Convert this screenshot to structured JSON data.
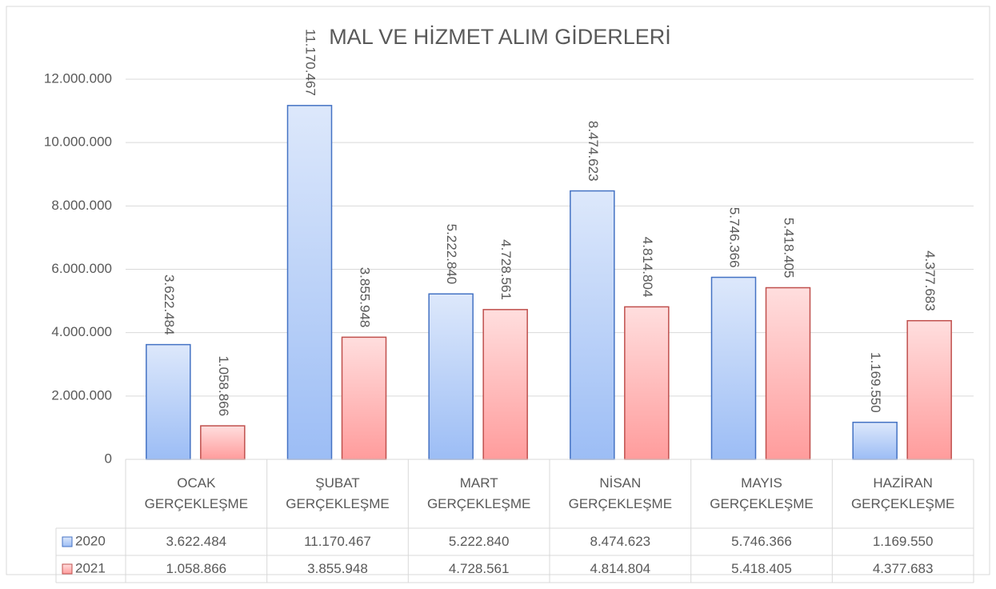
{
  "chart_data": {
    "type": "bar",
    "title": "MAL VE HİZMET ALIM GİDERLERİ",
    "categories": [
      "OCAK GERÇEKLEŞME",
      "ŞUBAT GERÇEKLEŞME",
      "MART GERÇEKLEŞME",
      "NİSAN GERÇEKLEŞME",
      "MAYIS GERÇEKLEŞME",
      "HAZİRAN GERÇEKLEŞME"
    ],
    "series": [
      {
        "name": "2020",
        "color": "#4472c4",
        "values": [
          3622484,
          11170467,
          5222840,
          8474623,
          5746366,
          1169550
        ],
        "value_labels": [
          "3.622.484",
          "11.170.467",
          "5.222.840",
          "8.474.623",
          "5.746.366",
          "1.169.550"
        ]
      },
      {
        "name": "2021",
        "color": "#c0504d",
        "values": [
          1058866,
          3855948,
          4728561,
          4814804,
          5418405,
          4377683
        ],
        "value_labels": [
          "1.058.866",
          "3.855.948",
          "4.728.561",
          "4.814.804",
          "5.418.405",
          "4.377.683"
        ]
      }
    ],
    "ylim": [
      0,
      12000000
    ],
    "yticks": [
      0,
      {
        "value": 2000000,
        "label": "2.000.000"
      },
      {
        "value": 4000000,
        "label": "4.000.000"
      },
      {
        "value": 6000000,
        "label": "6.000.000"
      },
      {
        "value": 8000000,
        "label": "8.000.000"
      },
      {
        "value": 10000000,
        "label": "10.000.000"
      },
      {
        "value": 12000000,
        "label": "12.000.000"
      }
    ],
    "grid": true,
    "data_table": true
  }
}
